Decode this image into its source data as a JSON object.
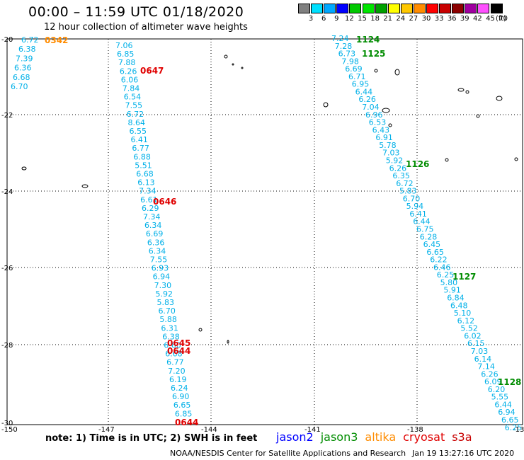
{
  "header": {
    "title": "00:00 – 11:59 UTC 01/18/2020",
    "subtitle": "12 hour collection of altimeter wave heights"
  },
  "legend": {
    "unit": "(ft)",
    "items": [
      {
        "label": "3",
        "color": "#808080"
      },
      {
        "label": "6",
        "color": "#00e0ff"
      },
      {
        "label": "9",
        "color": "#00a8ff"
      },
      {
        "label": "12",
        "color": "#0000ff"
      },
      {
        "label": "15",
        "color": "#00c800"
      },
      {
        "label": "18",
        "color": "#00e600"
      },
      {
        "label": "21",
        "color": "#00a000"
      },
      {
        "label": "24",
        "color": "#ffff00"
      },
      {
        "label": "27",
        "color": "#ffc800"
      },
      {
        "label": "30",
        "color": "#ff8c00"
      },
      {
        "label": "33",
        "color": "#ff0000"
      },
      {
        "label": "36",
        "color": "#c80000"
      },
      {
        "label": "39",
        "color": "#8c0000"
      },
      {
        "label": "42",
        "color": "#a000a0"
      },
      {
        "label": "45",
        "color": "#ff50ff"
      },
      {
        "label": "70",
        "color": "#000000"
      }
    ]
  },
  "axes": {
    "lon_ticks": [
      "-150",
      "-147",
      "-144",
      "-141",
      "-138",
      "-13"
    ],
    "lat_ticks": [
      "-20",
      "-22",
      "-24",
      "-26",
      "-28",
      "-30"
    ]
  },
  "colors": {
    "wave_text": "#00b0e8",
    "jason2": "#0000ff",
    "jason3": "#008c00",
    "altika": "#ff8c00",
    "cryosat": "#e00000",
    "s3a": "#c80000"
  },
  "tracks": [
    {
      "satellite": "cryosat",
      "values": [
        "7.06",
        "6.85",
        "7.88",
        "6.26",
        "6.06",
        "7.84",
        "6.54",
        "7.55",
        "6.72",
        "8.64",
        "6.55",
        "6.41",
        "6.77",
        "6.88",
        "5.51",
        "6.68",
        "6.13",
        "7.34",
        "6.61",
        "6.29",
        "7.34",
        "6.34",
        "6.69",
        "6.36",
        "6.34",
        "7.55",
        "6.93",
        "6.94",
        "7.30",
        "5.92",
        "5.83",
        "6.70",
        "5.88",
        "6.31",
        "6.38",
        "6.60",
        "6.68",
        "6.77",
        "7.20",
        "6.19",
        "6.24",
        "6.90",
        "6.65",
        "6.85"
      ],
      "times": [
        {
          "label": "0647",
          "at": 3
        },
        {
          "label": "0646",
          "at": 18
        },
        {
          "label": "0645",
          "at": 34
        },
        {
          "label": "0644",
          "at": 35
        },
        {
          "label": "0644",
          "at": 43
        }
      ]
    },
    {
      "satellite": "altika",
      "values": [
        "6.72",
        "6.38",
        "7.39",
        "6.36",
        "6.68",
        "6.70"
      ],
      "times": [
        {
          "label": "0342",
          "at": 0
        }
      ]
    },
    {
      "satellite": "jason3",
      "values": [
        "7.24",
        "7.28",
        "6.73",
        "7.98",
        "6.69",
        "6.71",
        "6.95",
        "6.44",
        "6.26",
        "7.04",
        "6.96",
        "6.53",
        "6.43",
        "6.91",
        "5.78",
        "7.03",
        "5.92",
        "6.26",
        "6.35",
        "6.72",
        "5.83",
        "6.70",
        "5.94",
        "6.41",
        "6.44",
        "6.75",
        "6.28",
        "6.45",
        "6.65",
        "6.22",
        "6.46",
        "6.25",
        "5.80",
        "5.91",
        "6.84",
        "6.48",
        "5.10",
        "6.12",
        "5.52",
        "6.02",
        "6.15",
        "7.03",
        "6.14",
        "7.14",
        "6.26",
        "6.09",
        "6.20",
        "5.55",
        "6.44",
        "6.94",
        "6.65",
        "6.25"
      ],
      "times": [
        {
          "label": "1124",
          "at": 0
        },
        {
          "label": "1125",
          "at": 2
        },
        {
          "label": "1126",
          "at": 17
        },
        {
          "label": "1127",
          "at": 32
        },
        {
          "label": "1128",
          "at": 46
        }
      ]
    }
  ],
  "footer": {
    "note": "note: 1) Time is in UTC; 2) SWH is in feet",
    "satellites": [
      {
        "name": "jason2",
        "key": "jason2"
      },
      {
        "name": "jason3",
        "key": "jason3"
      },
      {
        "name": "altika",
        "key": "altika"
      },
      {
        "name": "cryosat",
        "key": "cryosat"
      },
      {
        "name": "s3a",
        "key": "s3a"
      }
    ],
    "credit": "NOAA/NESDIS Center for Satellite Applications and Research",
    "timestamp": "Jan 19 13:27:16 UTC 2020"
  }
}
